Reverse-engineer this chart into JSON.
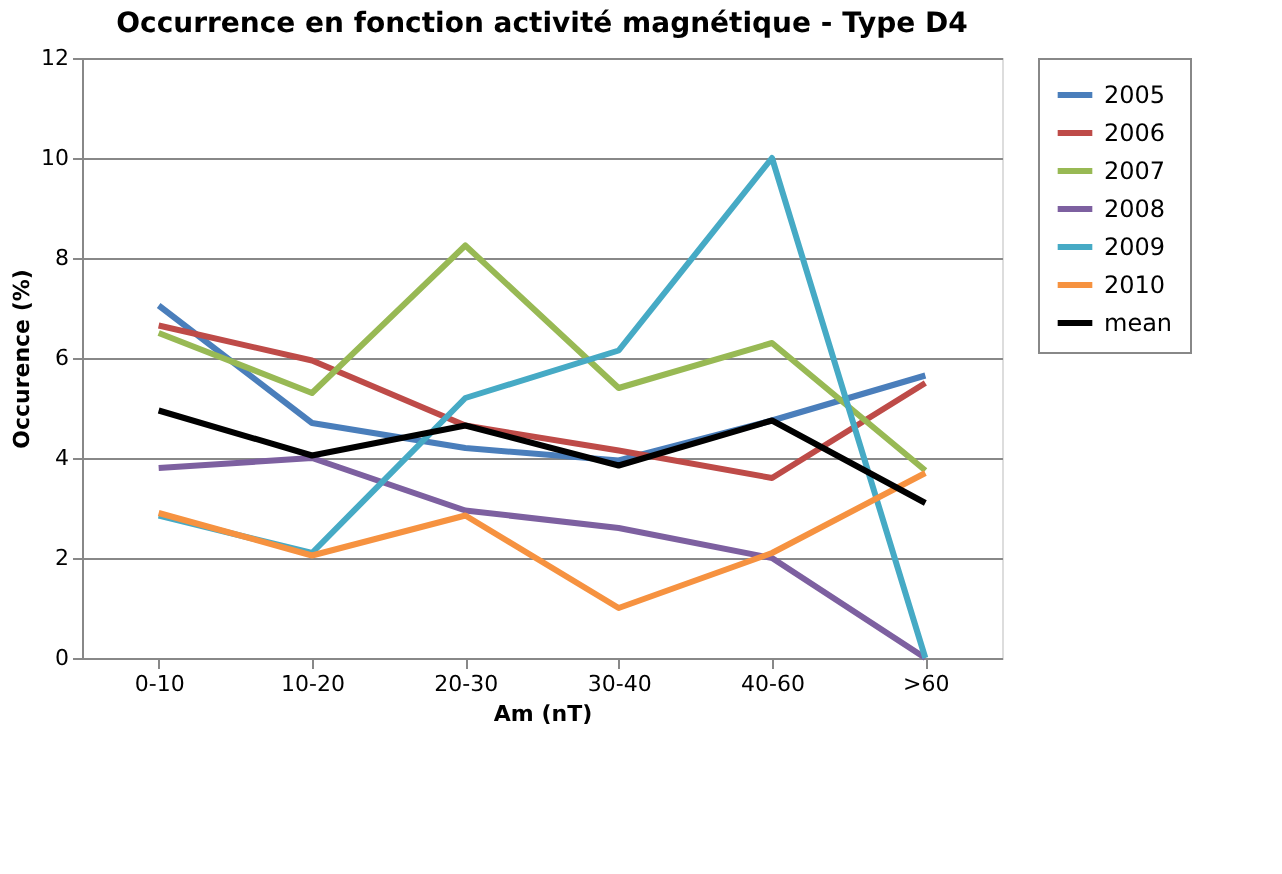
{
  "chart_data": {
    "type": "line",
    "title": "Occurrence en fonction activité magnétique - Type D4",
    "xlabel": "Am (nT)",
    "ylabel": "Occurence (%)",
    "categories": [
      "0-10",
      "10-20",
      "20-30",
      "30-40",
      "40-60",
      ">60"
    ],
    "series": [
      {
        "name": "2005",
        "color": "#4a7ebb",
        "values": [
          7.05,
          4.7,
          4.2,
          3.95,
          4.75,
          5.65
        ]
      },
      {
        "name": "2006",
        "color": "#be4b48",
        "values": [
          6.65,
          5.95,
          4.65,
          4.15,
          3.6,
          5.5
        ]
      },
      {
        "name": "2007",
        "color": "#98b954",
        "values": [
          6.5,
          5.3,
          8.25,
          5.4,
          6.3,
          3.75
        ]
      },
      {
        "name": "2008",
        "color": "#7d60a0",
        "values": [
          3.8,
          4.0,
          2.95,
          2.6,
          2.0,
          0
        ]
      },
      {
        "name": "2009",
        "color": "#46aac5",
        "values": [
          2.85,
          2.1,
          5.2,
          6.15,
          10.0,
          0
        ]
      },
      {
        "name": "2010",
        "color": "#f69240",
        "values": [
          2.9,
          2.05,
          2.85,
          1.0,
          2.1,
          3.7
        ]
      },
      {
        "name": "mean",
        "color": "#000000",
        "values": [
          4.95,
          4.05,
          4.65,
          3.85,
          4.75,
          3.1
        ]
      }
    ],
    "ylim": [
      0,
      12
    ],
    "yticks": [
      0,
      2,
      4,
      6,
      8,
      10,
      12
    ],
    "grid": "y",
    "legend": "right",
    "marker": "none",
    "line_style": "solid"
  }
}
